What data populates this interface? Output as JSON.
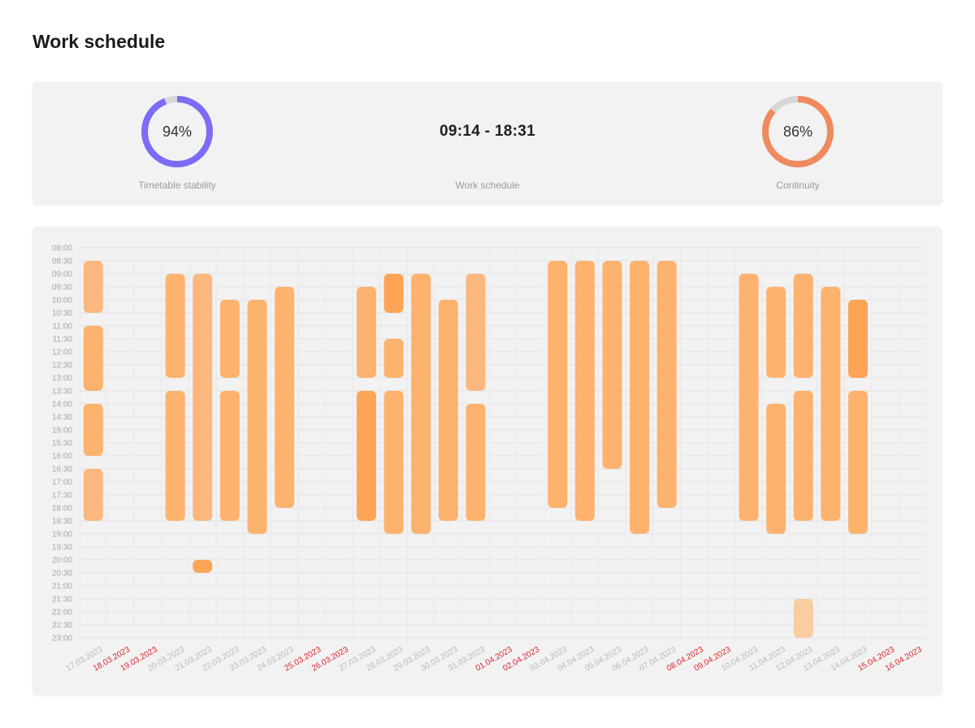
{
  "page": {
    "title": "Work schedule"
  },
  "stats": {
    "stability": {
      "value": "94%",
      "fraction": 0.94,
      "label": "Timetable stability",
      "color": "#7b6cf6"
    },
    "schedule": {
      "value": "09:14 - 18:31",
      "label": "Work schedule"
    },
    "continuity": {
      "value": "86%",
      "fraction": 0.86,
      "label": "Continuity",
      "color": "#f08a5d"
    },
    "track_color": "#d6d6d6"
  },
  "chart_data": {
    "type": "range-bar",
    "y_ticks": [
      "08:00",
      "08:30",
      "09:00",
      "09:30",
      "10:00",
      "10:30",
      "11:00",
      "11:30",
      "12:00",
      "12:30",
      "13:00",
      "13:30",
      "14:00",
      "14:30",
      "15:00",
      "15:30",
      "16:00",
      "16:30",
      "17:00",
      "17:30",
      "18:00",
      "18:30",
      "19:00",
      "19:30",
      "20:00",
      "20:30",
      "21:00",
      "21:30",
      "22:00",
      "22:30",
      "23:00"
    ],
    "categories": [
      {
        "label": "17.03.2023",
        "weekend": false
      },
      {
        "label": "18.03.2023",
        "weekend": true
      },
      {
        "label": "19.03.2023",
        "weekend": true
      },
      {
        "label": "20.03.2023",
        "weekend": false
      },
      {
        "label": "21.03.2023",
        "weekend": false
      },
      {
        "label": "22.03.2023",
        "weekend": false
      },
      {
        "label": "23.03.2023",
        "weekend": false
      },
      {
        "label": "24.03.2023",
        "weekend": false
      },
      {
        "label": "25.03.2023",
        "weekend": true
      },
      {
        "label": "26.03.2023",
        "weekend": true
      },
      {
        "label": "27.03.2023",
        "weekend": false
      },
      {
        "label": "28.03.2023",
        "weekend": false
      },
      {
        "label": "29.03.2023",
        "weekend": false
      },
      {
        "label": "30.03.2023",
        "weekend": false
      },
      {
        "label": "31.03.2023",
        "weekend": false
      },
      {
        "label": "01.04.2023",
        "weekend": true
      },
      {
        "label": "02.04.2023",
        "weekend": true
      },
      {
        "label": "03.04.2023",
        "weekend": false
      },
      {
        "label": "04.04.2023",
        "weekend": false
      },
      {
        "label": "05.04.2023",
        "weekend": false
      },
      {
        "label": "06.04.2023",
        "weekend": false
      },
      {
        "label": "07.04.2023",
        "weekend": false
      },
      {
        "label": "08.04.2023",
        "weekend": true
      },
      {
        "label": "09.04.2023",
        "weekend": true
      },
      {
        "label": "10.04.2023",
        "weekend": false
      },
      {
        "label": "11.04.2023",
        "weekend": false
      },
      {
        "label": "12.04.2023",
        "weekend": false
      },
      {
        "label": "13.04.2023",
        "weekend": false
      },
      {
        "label": "14.04.2023",
        "weekend": false
      },
      {
        "label": "15.04.2023",
        "weekend": true
      },
      {
        "label": "16.04.2023",
        "weekend": true
      }
    ],
    "intervals": [
      {
        "date": "17.03.2023",
        "start": "08:30",
        "end": "10:30",
        "shade": "light"
      },
      {
        "date": "17.03.2023",
        "start": "11:00",
        "end": "13:30",
        "shade": "medium"
      },
      {
        "date": "17.03.2023",
        "start": "14:00",
        "end": "16:00",
        "shade": "medium"
      },
      {
        "date": "17.03.2023",
        "start": "16:30",
        "end": "18:30",
        "shade": "light"
      },
      {
        "date": "20.03.2023",
        "start": "09:00",
        "end": "13:00",
        "shade": "medium"
      },
      {
        "date": "20.03.2023",
        "start": "13:30",
        "end": "18:30",
        "shade": "medium"
      },
      {
        "date": "21.03.2023",
        "start": "09:00",
        "end": "18:30",
        "shade": "light"
      },
      {
        "date": "21.03.2023",
        "start": "20:00",
        "end": "20:30",
        "shade": "dark"
      },
      {
        "date": "22.03.2023",
        "start": "10:00",
        "end": "13:00",
        "shade": "medium"
      },
      {
        "date": "22.03.2023",
        "start": "13:30",
        "end": "18:30",
        "shade": "medium"
      },
      {
        "date": "23.03.2023",
        "start": "10:00",
        "end": "19:00",
        "shade": "medium"
      },
      {
        "date": "24.03.2023",
        "start": "09:30",
        "end": "18:00",
        "shade": "medium"
      },
      {
        "date": "27.03.2023",
        "start": "09:30",
        "end": "13:00",
        "shade": "medium"
      },
      {
        "date": "27.03.2023",
        "start": "13:30",
        "end": "18:30",
        "shade": "dark"
      },
      {
        "date": "28.03.2023",
        "start": "09:00",
        "end": "10:30",
        "shade": "dark"
      },
      {
        "date": "28.03.2023",
        "start": "11:30",
        "end": "13:00",
        "shade": "medium"
      },
      {
        "date": "28.03.2023",
        "start": "13:30",
        "end": "19:00",
        "shade": "medium"
      },
      {
        "date": "29.03.2023",
        "start": "09:00",
        "end": "19:00",
        "shade": "medium"
      },
      {
        "date": "30.03.2023",
        "start": "10:00",
        "end": "18:30",
        "shade": "medium"
      },
      {
        "date": "31.03.2023",
        "start": "09:00",
        "end": "13:30",
        "shade": "light"
      },
      {
        "date": "31.03.2023",
        "start": "14:00",
        "end": "18:30",
        "shade": "medium"
      },
      {
        "date": "03.04.2023",
        "start": "08:30",
        "end": "18:00",
        "shade": "medium"
      },
      {
        "date": "04.04.2023",
        "start": "08:30",
        "end": "18:30",
        "shade": "medium"
      },
      {
        "date": "05.04.2023",
        "start": "08:30",
        "end": "16:30",
        "shade": "medium"
      },
      {
        "date": "06.04.2023",
        "start": "08:30",
        "end": "19:00",
        "shade": "medium"
      },
      {
        "date": "07.04.2023",
        "start": "08:30",
        "end": "18:00",
        "shade": "medium"
      },
      {
        "date": "10.04.2023",
        "start": "09:00",
        "end": "18:30",
        "shade": "medium"
      },
      {
        "date": "11.04.2023",
        "start": "09:30",
        "end": "13:00",
        "shade": "medium"
      },
      {
        "date": "11.04.2023",
        "start": "14:00",
        "end": "19:00",
        "shade": "medium"
      },
      {
        "date": "12.04.2023",
        "start": "09:00",
        "end": "13:00",
        "shade": "medium"
      },
      {
        "date": "12.04.2023",
        "start": "13:30",
        "end": "18:30",
        "shade": "medium"
      },
      {
        "date": "12.04.2023",
        "start": "21:30",
        "end": "23:00",
        "shade": "pale"
      },
      {
        "date": "13.04.2023",
        "start": "09:30",
        "end": "18:30",
        "shade": "medium"
      },
      {
        "date": "14.04.2023",
        "start": "10:00",
        "end": "13:00",
        "shade": "dark"
      },
      {
        "date": "14.04.2023",
        "start": "13:30",
        "end": "19:00",
        "shade": "medium"
      }
    ],
    "colors": {
      "light": "#fbb77e",
      "medium": "#fdb26e",
      "dark": "#fda457",
      "pale": "#f8cda0",
      "weekday_label": "#b8b8b8",
      "weekend_label": "#d9262d",
      "grid": "#e2e2e2",
      "vgrid": "#e9e9e9"
    },
    "grid": true,
    "legend": "none"
  }
}
